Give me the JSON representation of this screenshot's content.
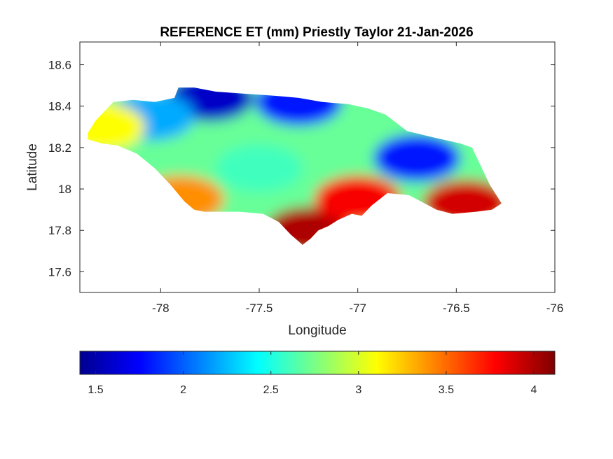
{
  "title": "REFERENCE ET (mm) Priestly Taylor 21-Jan-2026",
  "xlabel": "Longitude",
  "ylabel": "Latitude",
  "x_ticks": [
    {
      "value": -78,
      "label": "-78"
    },
    {
      "value": -77.5,
      "label": "-77.5"
    },
    {
      "value": -77,
      "label": "-77"
    },
    {
      "value": -76.5,
      "label": "-76.5"
    },
    {
      "value": -76,
      "label": "-76"
    }
  ],
  "y_ticks": [
    {
      "value": 17.6,
      "label": "17.6"
    },
    {
      "value": 17.8,
      "label": "17.8"
    },
    {
      "value": 18,
      "label": "18"
    },
    {
      "value": 18.2,
      "label": "18.2"
    },
    {
      "value": 18.4,
      "label": "18.4"
    },
    {
      "value": 18.6,
      "label": "18.6"
    }
  ],
  "xlim": [
    -78.41,
    -76.0
  ],
  "ylim": [
    17.5,
    18.71
  ],
  "colorbar": {
    "colormap": "jet",
    "range": [
      1.41,
      4.12
    ],
    "ticks": [
      {
        "value": 1.5,
        "label": "1.5"
      },
      {
        "value": 2,
        "label": "2"
      },
      {
        "value": 2.5,
        "label": "2.5"
      },
      {
        "value": 3,
        "label": "3"
      },
      {
        "value": 3.5,
        "label": "3.5"
      },
      {
        "value": 4,
        "label": "4"
      }
    ]
  },
  "chart_data": {
    "type": "heatmap",
    "title": "REFERENCE ET (mm) Priestly Taylor 21-Jan-2026",
    "xlabel": "Longitude",
    "ylabel": "Latitude",
    "xlim": [
      -78.41,
      -76.0
    ],
    "ylim": [
      17.5,
      18.71
    ],
    "color_range": [
      1.41,
      4.12
    ],
    "colormap": "jet",
    "boundary": [
      [
        -78.37,
        18.27
      ],
      [
        -78.33,
        18.33
      ],
      [
        -78.24,
        18.42
      ],
      [
        -78.14,
        18.43
      ],
      [
        -78.03,
        18.42
      ],
      [
        -77.93,
        18.44
      ],
      [
        -77.91,
        18.49
      ],
      [
        -77.83,
        18.49
      ],
      [
        -77.72,
        18.47
      ],
      [
        -77.57,
        18.46
      ],
      [
        -77.42,
        18.45
      ],
      [
        -77.3,
        18.44
      ],
      [
        -77.18,
        18.42
      ],
      [
        -77.05,
        18.41
      ],
      [
        -76.95,
        18.39
      ],
      [
        -76.86,
        18.36
      ],
      [
        -76.75,
        18.28
      ],
      [
        -76.62,
        18.25
      ],
      [
        -76.48,
        18.22
      ],
      [
        -76.42,
        18.2
      ],
      [
        -76.38,
        18.12
      ],
      [
        -76.33,
        18.02
      ],
      [
        -76.27,
        17.93
      ],
      [
        -76.32,
        17.9
      ],
      [
        -76.4,
        17.89
      ],
      [
        -76.52,
        17.88
      ],
      [
        -76.6,
        17.9
      ],
      [
        -76.74,
        17.97
      ],
      [
        -76.85,
        17.98
      ],
      [
        -76.93,
        17.92
      ],
      [
        -76.98,
        17.87
      ],
      [
        -77.03,
        17.88
      ],
      [
        -77.1,
        17.85
      ],
      [
        -77.15,
        17.82
      ],
      [
        -77.2,
        17.8
      ],
      [
        -77.24,
        17.76
      ],
      [
        -77.28,
        17.73
      ],
      [
        -77.34,
        17.78
      ],
      [
        -77.4,
        17.84
      ],
      [
        -77.48,
        17.88
      ],
      [
        -77.6,
        17.89
      ],
      [
        -77.7,
        17.89
      ],
      [
        -77.78,
        17.89
      ],
      [
        -77.83,
        17.9
      ],
      [
        -77.88,
        17.94
      ],
      [
        -77.95,
        18.02
      ],
      [
        -78.03,
        18.1
      ],
      [
        -78.12,
        18.17
      ],
      [
        -78.22,
        18.21
      ],
      [
        -78.3,
        18.22
      ],
      [
        -78.37,
        18.24
      ]
    ],
    "regions": [
      {
        "description": "north-central coast",
        "lon": -77.75,
        "lat": 18.44,
        "value": 1.6
      },
      {
        "description": "northwest interior",
        "lon": -78.05,
        "lat": 18.35,
        "value": 2.2
      },
      {
        "description": "northern coast",
        "lon": -77.3,
        "lat": 18.42,
        "value": 1.8
      },
      {
        "description": "western tip",
        "lon": -78.3,
        "lat": 18.3,
        "value": 3.1
      },
      {
        "description": "central interior",
        "lon": -77.5,
        "lat": 18.1,
        "value": 2.6
      },
      {
        "description": "east-central interior",
        "lon": -76.7,
        "lat": 18.15,
        "value": 1.8
      },
      {
        "description": "southwest coast",
        "lon": -77.9,
        "lat": 17.95,
        "value": 3.4
      },
      {
        "description": "south coast peninsula",
        "lon": -77.25,
        "lat": 17.8,
        "value": 4.0
      },
      {
        "description": "southern plain",
        "lon": -77.0,
        "lat": 17.95,
        "value": 3.8
      },
      {
        "description": "southeast coast",
        "lon": -76.45,
        "lat": 17.93,
        "value": 3.9
      }
    ]
  }
}
